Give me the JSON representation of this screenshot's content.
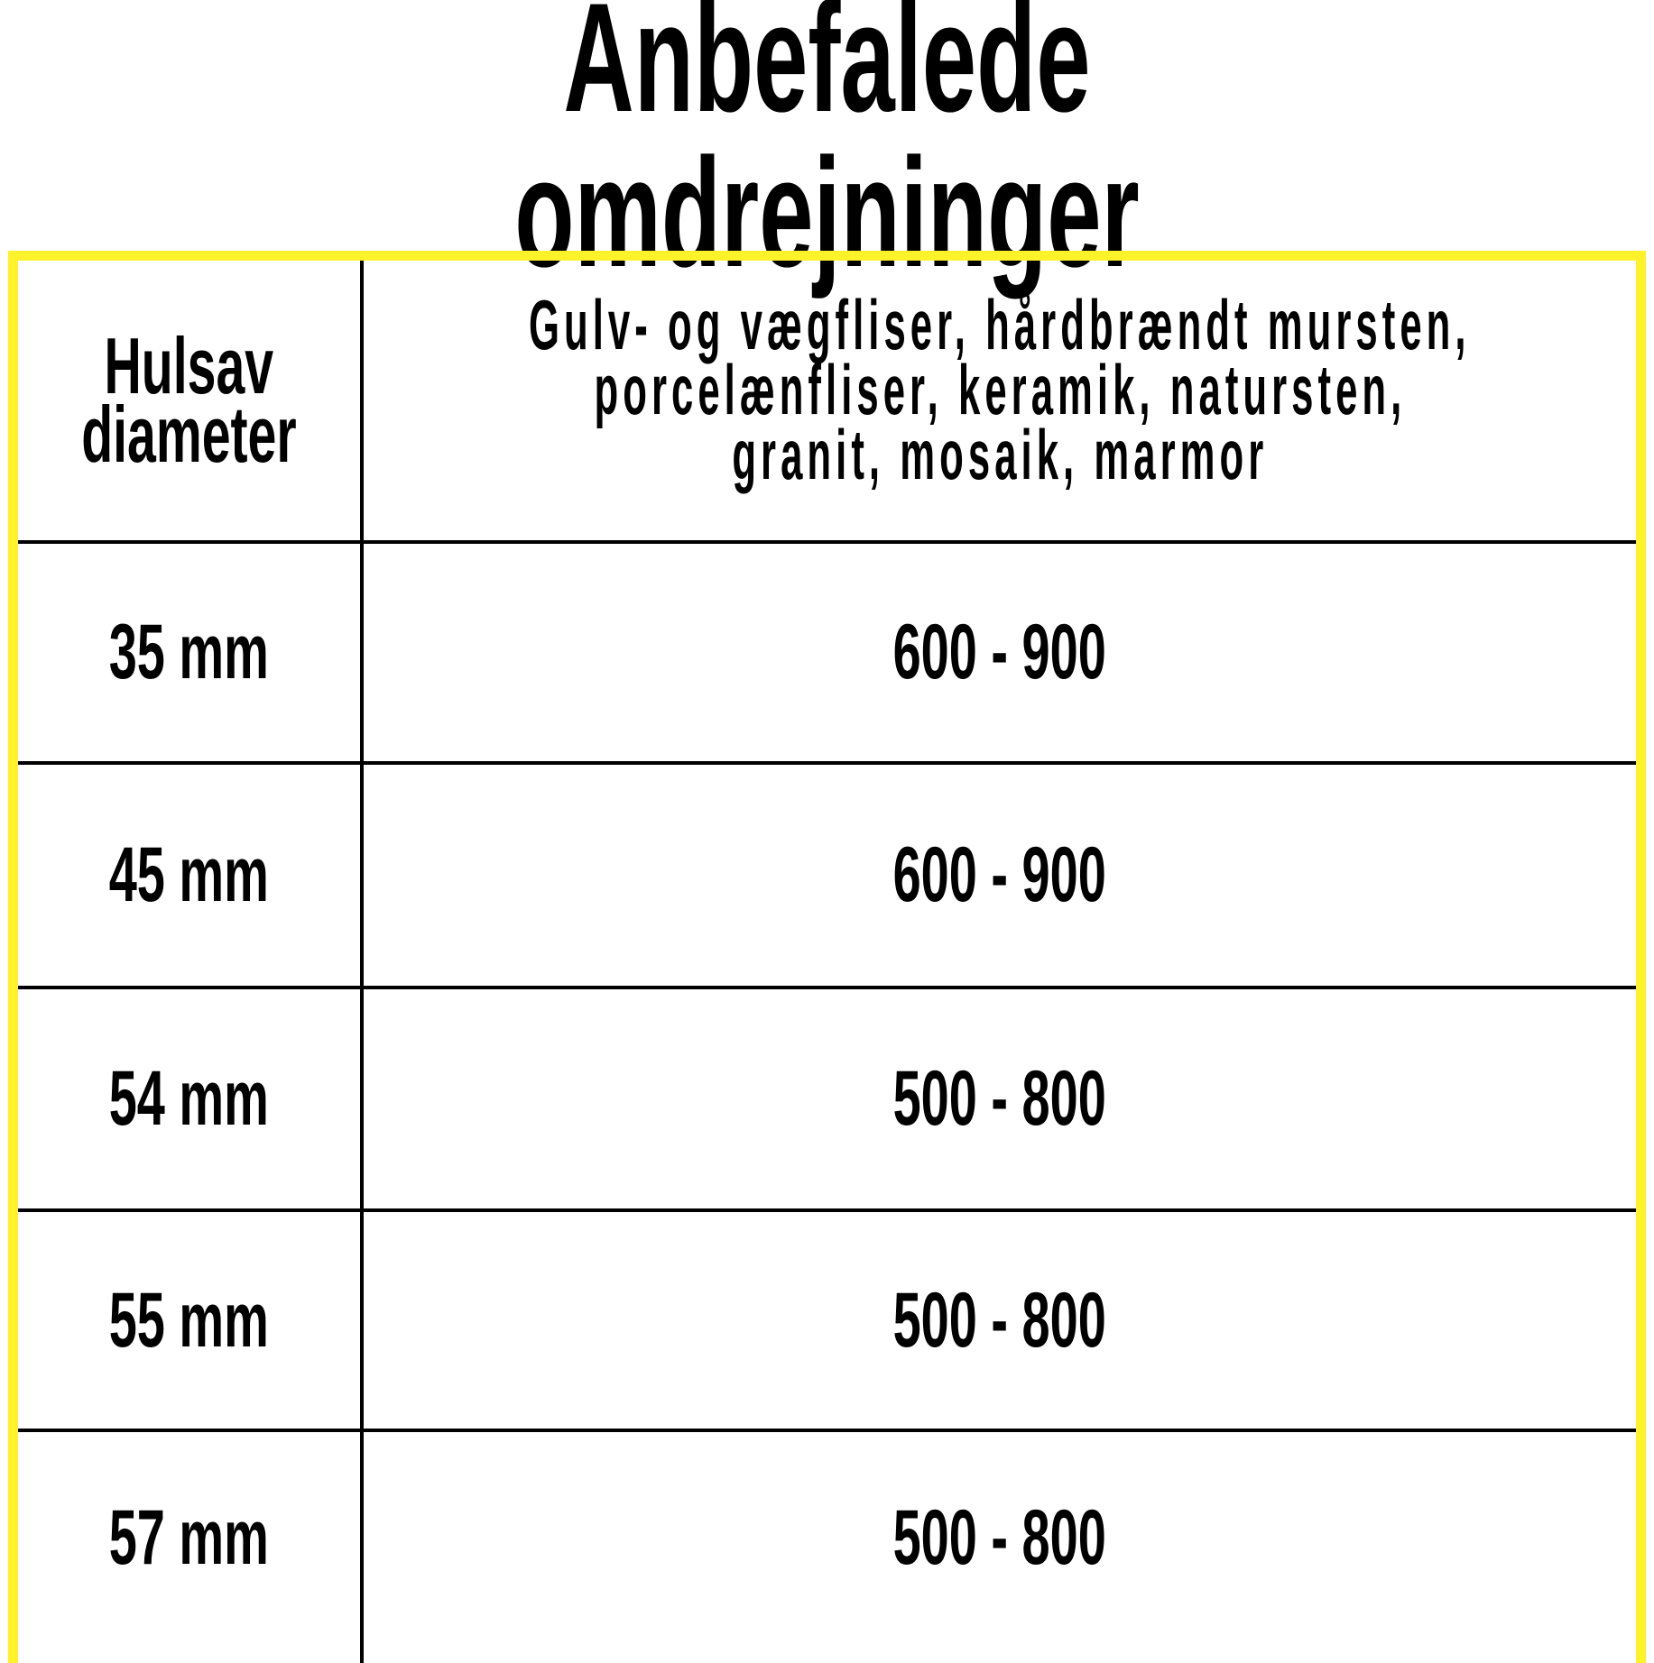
{
  "title": "Anbefalede omdrejninger",
  "accent_color": "#fff22a",
  "table": {
    "headers": {
      "diameter": [
        "Hulsav",
        "diameter"
      ],
      "material": [
        "Gulv- og vægfliser, hårdbrændt mursten,",
        "porcelænfliser, keramik, natursten,",
        "granit, mosaik, marmor"
      ]
    },
    "rows": [
      {
        "diameter": "35 mm",
        "rpm": "600 - 900"
      },
      {
        "diameter": "45 mm",
        "rpm": "600 - 900"
      },
      {
        "diameter": "54 mm",
        "rpm": "500 - 800"
      },
      {
        "diameter": "55 mm",
        "rpm": "500 - 800"
      },
      {
        "diameter": "57 mm",
        "rpm": "500 - 800"
      }
    ]
  }
}
